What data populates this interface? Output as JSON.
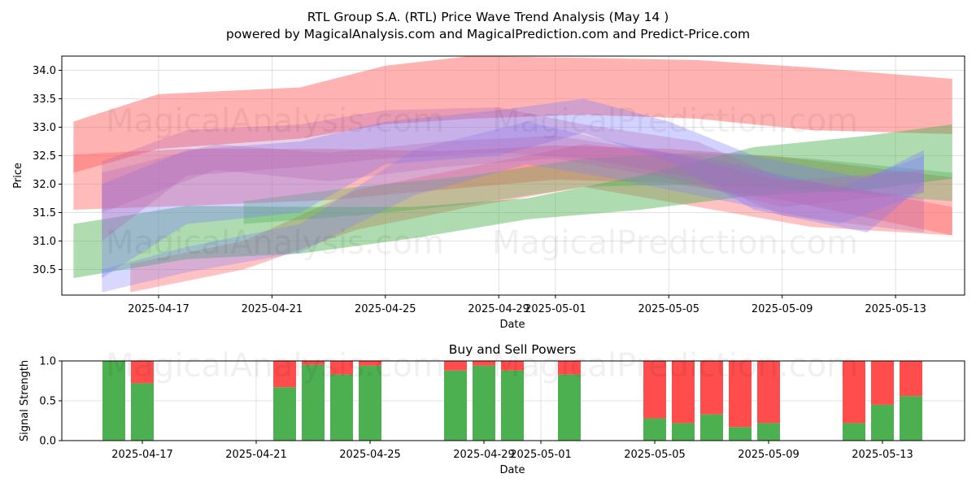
{
  "title_line1": "RTL Group S.A. (RTL) Price Wave Trend Analysis (May 14 )",
  "title_line2": "powered by MagicalAnalysis.com and MagicalPrediction.com and Predict-Price.com",
  "watermarks": [
    "MagicalAnalysis.com",
    "MagicalPrediction.com"
  ],
  "colors": {
    "red_band": "#ff6666",
    "green_band": "#4caf50",
    "blue_band": "#7f7fff",
    "purple_band": "#b266b2",
    "buy": "#4caf50",
    "sell": "#ff4d4d"
  },
  "chart_data": [
    {
      "type": "area",
      "xlabel": "Date",
      "ylabel": "Price",
      "ylim": [
        30.05,
        34.25
      ],
      "yticks": [
        30.5,
        31.0,
        31.5,
        32.0,
        32.5,
        33.0,
        33.5,
        34.0
      ],
      "xticks": [
        {
          "date": "2025-04-17",
          "label": "2025-04-17"
        },
        {
          "date": "2025-04-21",
          "label": "2025-04-21"
        },
        {
          "date": "2025-04-25",
          "label": "2025-04-25"
        },
        {
          "date": "2025-04-29",
          "label": "2025-04-29"
        },
        {
          "date": "2025-05-01",
          "label": "2025-05-01"
        },
        {
          "date": "2025-05-05",
          "label": "2025-05-05"
        },
        {
          "date": "2025-05-09",
          "label": "2025-05-09"
        },
        {
          "date": "2025-05-13",
          "label": "2025-05-13"
        }
      ],
      "grid": true,
      "bands": [
        {
          "color": "red",
          "opacity": 0.5,
          "x": [
            "2025-04-14",
            "2025-04-17",
            "2025-04-22",
            "2025-04-25",
            "2025-04-28",
            "2025-05-02",
            "2025-05-06",
            "2025-05-10",
            "2025-05-15"
          ],
          "upper": [
            33.1,
            33.58,
            33.7,
            34.08,
            34.25,
            34.22,
            34.18,
            34.05,
            33.85
          ],
          "lower": [
            32.2,
            32.62,
            32.8,
            33.05,
            33.15,
            33.22,
            33.15,
            32.95,
            32.88
          ]
        },
        {
          "color": "red",
          "opacity": 0.45,
          "x": [
            "2025-04-14",
            "2025-04-18",
            "2025-04-23",
            "2025-04-27",
            "2025-05-01",
            "2025-05-05",
            "2025-05-09",
            "2025-05-15"
          ],
          "upper": [
            32.52,
            32.62,
            32.62,
            32.58,
            32.68,
            32.62,
            32.48,
            32.12
          ],
          "lower": [
            31.55,
            31.62,
            31.72,
            31.9,
            32.08,
            32.02,
            31.72,
            31.1
          ]
        },
        {
          "color": "red",
          "opacity": 0.4,
          "x": [
            "2025-04-16",
            "2025-04-20",
            "2025-04-24",
            "2025-04-28",
            "2025-05-02",
            "2025-05-06",
            "2025-05-10",
            "2025-05-15"
          ],
          "upper": [
            30.6,
            31.0,
            31.9,
            32.3,
            32.7,
            32.5,
            32.05,
            31.6
          ],
          "lower": [
            30.1,
            30.5,
            31.2,
            31.6,
            31.95,
            31.6,
            31.25,
            31.1
          ]
        },
        {
          "color": "green",
          "opacity": 0.45,
          "x": [
            "2025-04-14",
            "2025-04-18",
            "2025-04-22",
            "2025-04-26",
            "2025-04-30",
            "2025-05-04",
            "2025-05-08",
            "2025-05-12",
            "2025-05-15"
          ],
          "upper": [
            31.3,
            31.62,
            31.6,
            31.6,
            31.75,
            32.15,
            32.65,
            32.85,
            33.05
          ],
          "lower": [
            30.35,
            30.68,
            30.78,
            31.05,
            31.38,
            31.55,
            31.8,
            31.9,
            32.1
          ]
        },
        {
          "color": "green",
          "opacity": 0.35,
          "x": [
            "2025-04-20",
            "2025-04-24",
            "2025-04-28",
            "2025-05-02",
            "2025-05-06",
            "2025-05-10",
            "2025-05-15"
          ],
          "upper": [
            31.7,
            31.95,
            32.15,
            32.45,
            32.55,
            32.45,
            32.2
          ],
          "lower": [
            31.3,
            31.45,
            31.65,
            31.95,
            32.0,
            31.9,
            31.7
          ]
        },
        {
          "color": "blue",
          "opacity": 0.35,
          "x": [
            "2025-04-15",
            "2025-04-18",
            "2025-04-22",
            "2025-04-25",
            "2025-04-29",
            "2025-05-02",
            "2025-05-05",
            "2025-05-08",
            "2025-05-12",
            "2025-05-14"
          ],
          "upper": [
            32.0,
            32.6,
            32.75,
            33.1,
            33.3,
            33.5,
            33.1,
            32.5,
            32.1,
            32.6
          ],
          "lower": [
            30.35,
            31.3,
            31.5,
            32.35,
            32.5,
            32.9,
            32.4,
            31.55,
            31.15,
            32.0
          ]
        },
        {
          "color": "blue",
          "opacity": 0.3,
          "x": [
            "2025-04-15",
            "2025-04-18",
            "2025-04-22",
            "2025-04-26",
            "2025-04-30",
            "2025-05-03",
            "2025-05-07",
            "2025-05-11",
            "2025-05-14"
          ],
          "upper": [
            30.5,
            30.9,
            31.3,
            32.6,
            33.1,
            32.75,
            32.35,
            31.95,
            32.5
          ],
          "lower": [
            30.1,
            30.45,
            30.8,
            31.8,
            32.35,
            32.1,
            31.7,
            31.3,
            31.85
          ]
        },
        {
          "color": "purple",
          "opacity": 0.3,
          "x": [
            "2025-04-15",
            "2025-04-18",
            "2025-04-22",
            "2025-04-25",
            "2025-04-29",
            "2025-05-02",
            "2025-05-06",
            "2025-05-09",
            "2025-05-14"
          ],
          "upper": [
            32.4,
            32.95,
            33.05,
            33.3,
            33.35,
            33.05,
            32.75,
            32.1,
            31.75
          ],
          "lower": [
            31.0,
            32.15,
            32.3,
            32.45,
            32.55,
            32.45,
            32.1,
            31.45,
            31.15
          ]
        },
        {
          "color": "purple",
          "opacity": 0.28,
          "x": [
            "2025-04-15",
            "2025-04-19",
            "2025-04-23",
            "2025-04-27",
            "2025-05-01",
            "2025-05-05",
            "2025-05-09",
            "2025-05-14"
          ],
          "upper": [
            32.2,
            32.7,
            32.55,
            32.75,
            32.85,
            32.55,
            32.05,
            32.25
          ],
          "lower": [
            31.5,
            32.25,
            32.05,
            32.3,
            32.45,
            32.1,
            31.6,
            31.85
          ]
        }
      ]
    },
    {
      "type": "bar",
      "title": "Buy and Sell Powers",
      "xlabel": "Date",
      "ylabel": "Signal Strength",
      "ylim": [
        0,
        1.0
      ],
      "yticks": [
        0.0,
        0.5,
        1.0
      ],
      "xticks": [
        {
          "date": "2025-04-17",
          "label": "2025-04-17"
        },
        {
          "date": "2025-04-21",
          "label": "2025-04-21"
        },
        {
          "date": "2025-04-25",
          "label": "2025-04-25"
        },
        {
          "date": "2025-04-29",
          "label": "2025-04-29"
        },
        {
          "date": "2025-05-01",
          "label": "2025-05-01"
        },
        {
          "date": "2025-05-05",
          "label": "2025-05-05"
        },
        {
          "date": "2025-05-09",
          "label": "2025-05-09"
        },
        {
          "date": "2025-05-13",
          "label": "2025-05-13"
        }
      ],
      "categories": [
        "2025-04-16",
        "2025-04-17",
        "2025-04-22",
        "2025-04-23",
        "2025-04-24",
        "2025-04-25",
        "2025-04-28",
        "2025-04-29",
        "2025-04-30",
        "2025-05-02",
        "2025-05-05",
        "2025-05-06",
        "2025-05-07",
        "2025-05-08",
        "2025-05-09",
        "2025-05-12",
        "2025-05-13",
        "2025-05-14"
      ],
      "series": [
        {
          "name": "Buy",
          "values": [
            1.0,
            0.72,
            0.67,
            0.95,
            0.83,
            0.94,
            0.88,
            0.94,
            0.88,
            0.83,
            0.28,
            0.22,
            0.33,
            0.17,
            0.22,
            0.22,
            0.45,
            0.56
          ]
        },
        {
          "name": "Sell",
          "values": [
            0.0,
            0.28,
            0.33,
            0.05,
            0.17,
            0.06,
            0.12,
            0.06,
            0.12,
            0.17,
            0.72,
            0.78,
            0.67,
            0.83,
            0.78,
            0.78,
            0.55,
            0.44
          ]
        }
      ]
    }
  ]
}
